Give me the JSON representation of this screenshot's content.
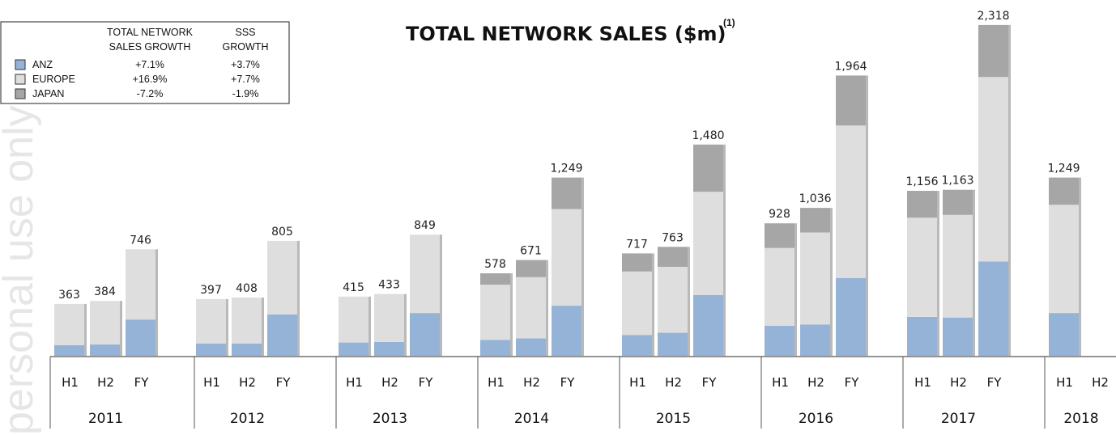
{
  "colors": {
    "anz": "#95b3d7",
    "europe": "#dedede",
    "japan": "#a6a6a6"
  },
  "watermark": "personal use only",
  "chart_data": {
    "type": "bar",
    "stacked": true,
    "title": "TOTAL NETWORK SALES ($m)",
    "title_footnote": "(1)",
    "years": [
      "2011",
      "2012",
      "2013",
      "2014",
      "2015",
      "2016",
      "2017",
      "2018"
    ],
    "periods": [
      "H1",
      "H2",
      "FY"
    ],
    "bars": [
      {
        "year": "2011",
        "period": "H1",
        "total": 363,
        "label": "363",
        "anz": 75,
        "europe": 288,
        "japan": 0
      },
      {
        "year": "2011",
        "period": "H2",
        "total": 384,
        "label": "384",
        "anz": 79,
        "europe": 305,
        "japan": 0
      },
      {
        "year": "2011",
        "period": "FY",
        "total": 746,
        "label": "746",
        "anz": 254,
        "europe": 492,
        "japan": 0
      },
      {
        "year": "2012",
        "period": "H1",
        "total": 397,
        "label": "397",
        "anz": 86,
        "europe": 311,
        "japan": 0
      },
      {
        "year": "2012",
        "period": "H2",
        "total": 408,
        "label": "408",
        "anz": 86,
        "europe": 322,
        "japan": 0
      },
      {
        "year": "2012",
        "period": "FY",
        "total": 805,
        "label": "805",
        "anz": 289,
        "europe": 516,
        "japan": 0
      },
      {
        "year": "2013",
        "period": "H1",
        "total": 415,
        "label": "415",
        "anz": 93,
        "europe": 322,
        "japan": 0
      },
      {
        "year": "2013",
        "period": "H2",
        "total": 433,
        "label": "433",
        "anz": 97,
        "europe": 336,
        "japan": 0
      },
      {
        "year": "2013",
        "period": "FY",
        "total": 849,
        "label": "849",
        "anz": 300,
        "europe": 549,
        "japan": 0
      },
      {
        "year": "2014",
        "period": "H1",
        "total": 578,
        "label": "578",
        "anz": 111,
        "europe": 387,
        "japan": 80
      },
      {
        "year": "2014",
        "period": "H2",
        "total": 671,
        "label": "671",
        "anz": 122,
        "europe": 429,
        "japan": 120
      },
      {
        "year": "2014",
        "period": "FY",
        "total": 1249,
        "label": "1,249",
        "anz": 351,
        "europe": 677,
        "japan": 221
      },
      {
        "year": "2015",
        "period": "H1",
        "total": 717,
        "label": "717",
        "anz": 146,
        "europe": 444,
        "japan": 127
      },
      {
        "year": "2015",
        "period": "H2",
        "total": 763,
        "label": "763",
        "anz": 161,
        "europe": 462,
        "japan": 140
      },
      {
        "year": "2015",
        "period": "FY",
        "total": 1480,
        "label": "1,480",
        "anz": 426,
        "europe": 723,
        "japan": 331
      },
      {
        "year": "2016",
        "period": "H1",
        "total": 928,
        "label": "928",
        "anz": 211,
        "europe": 544,
        "japan": 173
      },
      {
        "year": "2016",
        "period": "H2",
        "total": 1036,
        "label": "1,036",
        "anz": 219,
        "europe": 645,
        "japan": 172
      },
      {
        "year": "2016",
        "period": "FY",
        "total": 1964,
        "label": "1,964",
        "anz": 545,
        "europe": 1069,
        "japan": 350
      },
      {
        "year": "2017",
        "period": "H1",
        "total": 1156,
        "label": "1,156",
        "anz": 272,
        "europe": 696,
        "japan": 188
      },
      {
        "year": "2017",
        "period": "H2",
        "total": 1163,
        "label": "1,163",
        "anz": 268,
        "europe": 719,
        "japan": 176
      },
      {
        "year": "2017",
        "period": "FY",
        "total": 2318,
        "label": "2,318",
        "anz": 661,
        "europe": 1292,
        "japan": 365
      },
      {
        "year": "2018",
        "period": "H1",
        "total": 1249,
        "label": "1,249",
        "anz": 300,
        "europe": 758,
        "japan": 191
      },
      {
        "year": "2018",
        "period": "H2",
        "total": null,
        "label": "",
        "anz": 0,
        "europe": 0,
        "japan": 0
      }
    ],
    "legend_table": {
      "headers": [
        [
          "TOTAL NETWORK",
          "SALES GROWTH"
        ],
        [
          "SSS",
          "GROWTH"
        ]
      ],
      "rows": [
        {
          "key": "anz",
          "name": "ANZ",
          "growth": "+7.1%",
          "sss": "+3.7%"
        },
        {
          "key": "europe",
          "name": "EUROPE",
          "growth": "+16.9%",
          "sss": "+7.7%"
        },
        {
          "key": "japan",
          "name": "JAPAN",
          "growth": "-7.2%",
          "sss": "-1.9%"
        }
      ]
    }
  }
}
